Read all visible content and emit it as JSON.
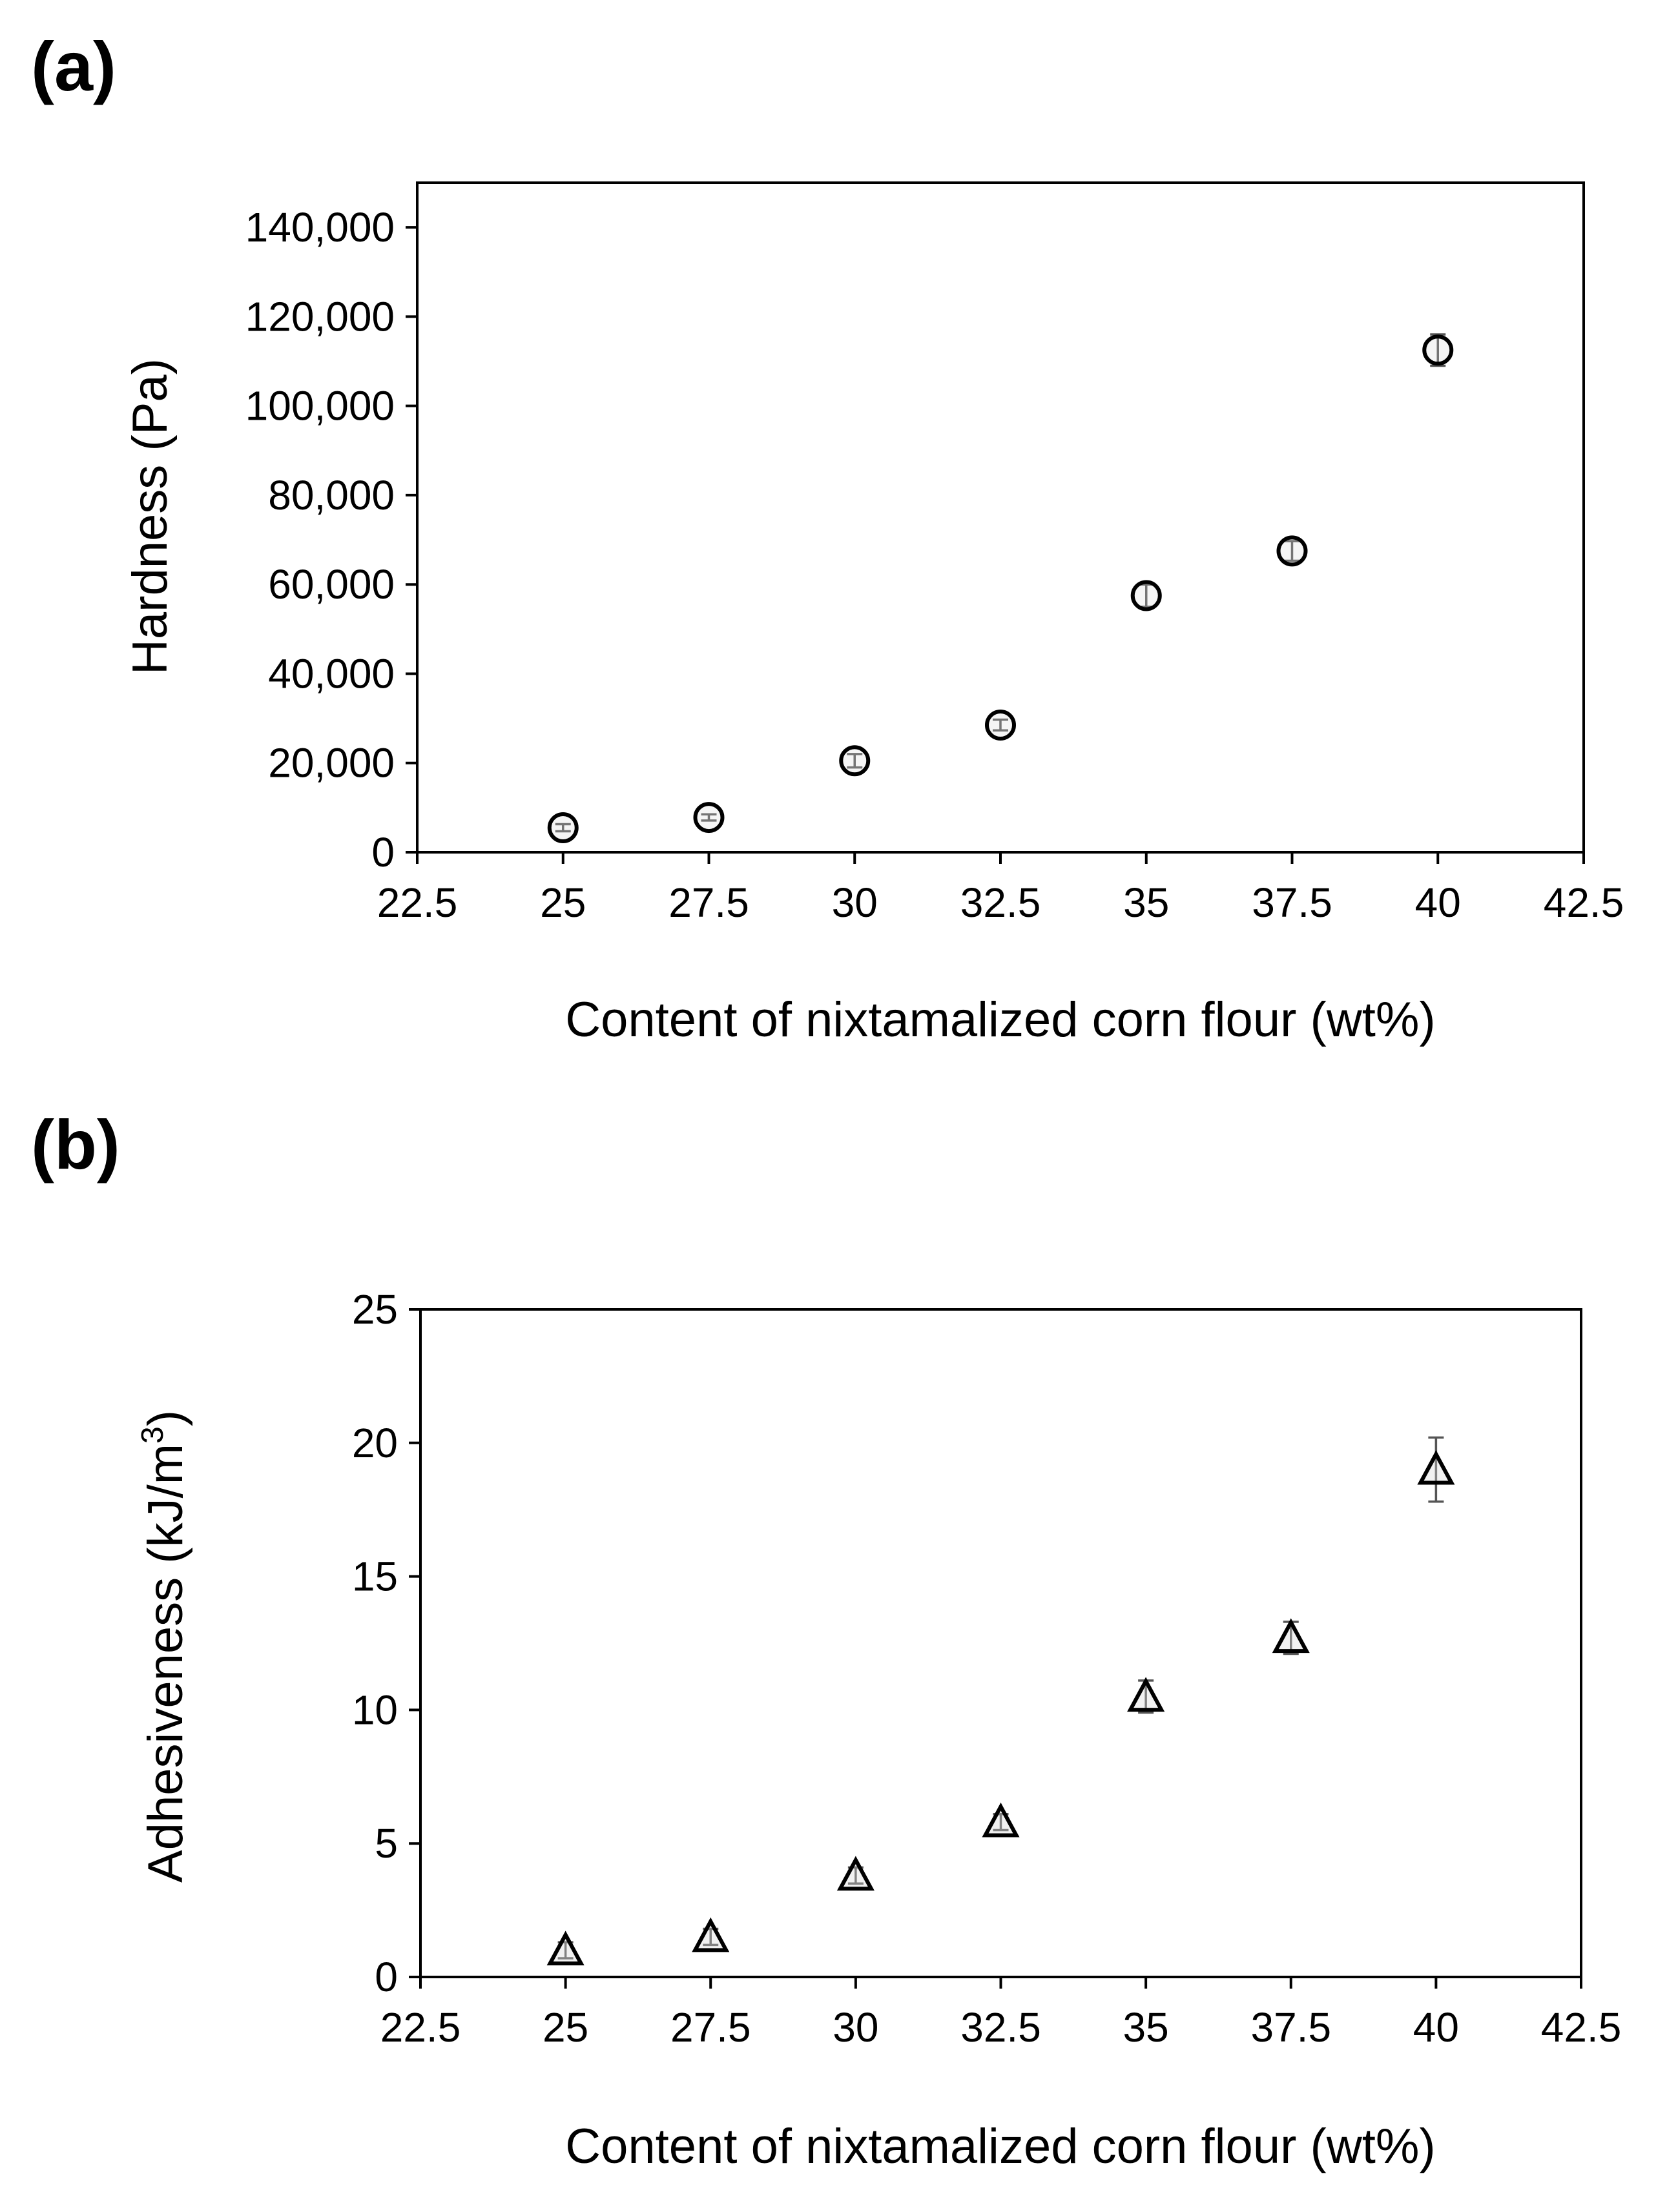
{
  "chart_data": [
    {
      "panel_label": "(a)",
      "type": "scatter",
      "marker": "circle",
      "xlabel": "Content of nixtamalized corn flour (wt%)",
      "ylabel": "Hardness (Pa)",
      "xlim": [
        22.5,
        42.5
      ],
      "ylim": [
        0,
        150000
      ],
      "xticks": [
        22.5,
        25,
        27.5,
        30,
        32.5,
        35,
        37.5,
        40,
        42.5
      ],
      "xtick_labels": [
        "22.5",
        "25",
        "27.5",
        "30",
        "32.5",
        "35",
        "37.5",
        "40",
        "42.5"
      ],
      "yticks": [
        0,
        20000,
        40000,
        60000,
        80000,
        100000,
        120000,
        140000
      ],
      "ytick_labels": [
        "0",
        "20,000",
        "40,000",
        "60,000",
        "80,000",
        "100,000",
        "120,000",
        "140,000"
      ],
      "grid": false,
      "legend": "none",
      "x": [
        25,
        27.5,
        30,
        32.5,
        35,
        37.5,
        40
      ],
      "y": [
        5500,
        7800,
        20500,
        28500,
        57500,
        67500,
        112500
      ],
      "error": [
        800,
        700,
        1500,
        1200,
        2500,
        2200,
        3500
      ]
    },
    {
      "panel_label": "(b)",
      "type": "scatter",
      "marker": "triangle",
      "xlabel": "Content of nixtamalized corn flour (wt%)",
      "ylabel": "Adhesiveness (kJ/m",
      "ylabel_superscript": "3",
      "ylabel_suffix": ")",
      "xlim": [
        22.5,
        42.5
      ],
      "ylim": [
        0,
        25
      ],
      "xticks": [
        22.5,
        25,
        27.5,
        30,
        32.5,
        35,
        37.5,
        40,
        42.5
      ],
      "xtick_labels": [
        "22.5",
        "25",
        "27.5",
        "30",
        "32.5",
        "35",
        "37.5",
        "40",
        "42.5"
      ],
      "yticks": [
        0,
        5,
        10,
        15,
        20,
        25
      ],
      "ytick_labels": [
        "0",
        "5",
        "10",
        "15",
        "20",
        "25"
      ],
      "grid": false,
      "legend": "none",
      "x": [
        25,
        27.5,
        30,
        32.5,
        35,
        37.5,
        40
      ],
      "y": [
        1.0,
        1.5,
        3.8,
        5.8,
        10.5,
        12.7,
        19.0
      ],
      "error": [
        0.3,
        0.3,
        0.3,
        0.3,
        0.6,
        0.6,
        1.2
      ]
    }
  ]
}
